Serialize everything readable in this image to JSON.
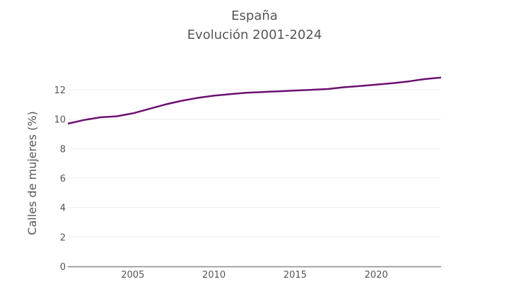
{
  "chart_data": {
    "type": "line",
    "title": "España",
    "subtitle": "Evolución 2001-2024",
    "xlabel": "",
    "ylabel": "Calles de mujeres (%)",
    "xlim": [
      2001,
      2024
    ],
    "ylim": [
      0,
      13.3
    ],
    "x_ticks": [
      2005,
      2010,
      2015,
      2020
    ],
    "y_ticks": [
      0,
      2,
      4,
      6,
      8,
      10,
      12
    ],
    "grid": true,
    "line_color": "#6b1070",
    "series": [
      {
        "x": [
          2001,
          2002,
          2003,
          2004,
          2005,
          2006,
          2007,
          2008,
          2009,
          2010,
          2011,
          2012,
          2013,
          2014,
          2015,
          2016,
          2017,
          2018,
          2019,
          2020,
          2021,
          2022,
          2023,
          2024
        ],
        "values": [
          9.7,
          9.95,
          10.13,
          10.2,
          10.4,
          10.7,
          11.0,
          11.25,
          11.45,
          11.6,
          11.7,
          11.8,
          11.85,
          11.9,
          11.95,
          12.0,
          12.05,
          12.17,
          12.26,
          12.35,
          12.45,
          12.57,
          12.73,
          12.83
        ]
      }
    ]
  }
}
